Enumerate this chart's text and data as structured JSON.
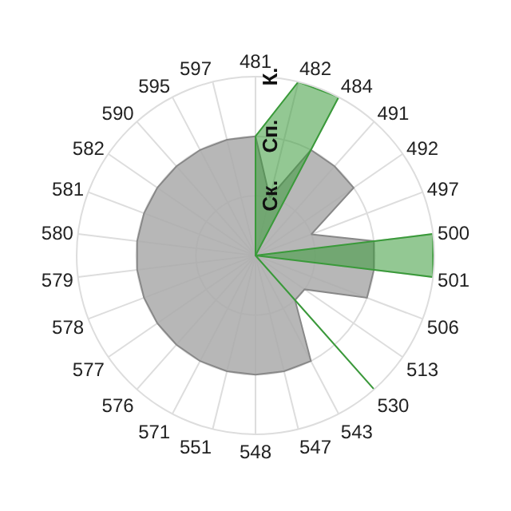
{
  "chart_data": {
    "type": "radar",
    "categories": [
      "481",
      "482",
      "484",
      "491",
      "492",
      "497",
      "500",
      "501",
      "506",
      "513",
      "530",
      "543",
      "547",
      "548",
      "551",
      "571",
      "576",
      "577",
      "578",
      "579",
      "580",
      "581",
      "582",
      "590",
      "595",
      "597"
    ],
    "series": [
      {
        "color": "#888888",
        "values": [
          2,
          1,
          2,
          2,
          2,
          1,
          2,
          2,
          2,
          1,
          1,
          2,
          2,
          2,
          2,
          2,
          2,
          2,
          2,
          2,
          2,
          2,
          2,
          2,
          2,
          2
        ]
      },
      {
        "color": "#3a9a3a",
        "values": [
          2,
          3,
          3,
          0,
          0,
          0,
          3,
          3,
          0,
          0,
          3,
          0,
          0,
          0,
          0,
          0,
          0,
          0,
          0,
          0,
          0,
          0,
          0,
          0,
          0,
          0
        ]
      }
    ],
    "ylim": [
      0,
      3
    ],
    "yticks": [
      {
        "value": 1,
        "label": "Ск."
      },
      {
        "value": 2,
        "label": "Сп."
      },
      {
        "value": 3,
        "label": "К."
      }
    ],
    "grid": true
  }
}
